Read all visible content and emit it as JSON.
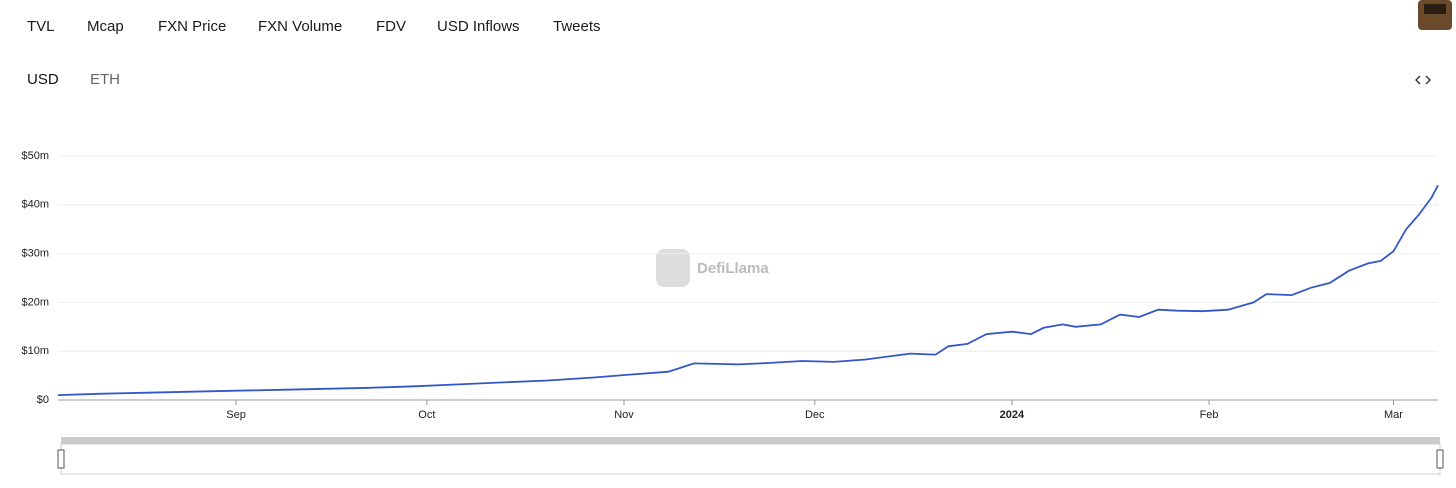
{
  "tabs": [
    "TVL",
    "Mcap",
    "FXN Price",
    "FXN Volume",
    "FDV",
    "USD Inflows",
    "Tweets"
  ],
  "currencies": [
    "USD",
    "ETH"
  ],
  "watermark": "DefiLlama",
  "chart_data": {
    "type": "line",
    "color": "#3457c8",
    "grid": true,
    "x": [
      0,
      7,
      14,
      21,
      28,
      35,
      42,
      49,
      56,
      63,
      70,
      77,
      84,
      91,
      96,
      100,
      107,
      112,
      117,
      122,
      127,
      131,
      134,
      138,
      140,
      143,
      146,
      150,
      153,
      155,
      158,
      160,
      164,
      167,
      170,
      173,
      176,
      180,
      184,
      188,
      190,
      194,
      197,
      200,
      203,
      206,
      208,
      210,
      212,
      213,
      214,
      216,
      217
    ],
    "values": [
      1.0,
      1.3,
      1.5,
      1.7,
      1.9,
      2.1,
      2.3,
      2.5,
      2.8,
      3.2,
      3.6,
      4.0,
      4.6,
      5.3,
      5.8,
      7.5,
      7.3,
      7.6,
      8.0,
      7.8,
      8.3,
      9.0,
      9.5,
      9.3,
      11,
      11.5,
      13.5,
      14.0,
      13.5,
      14.8,
      15.5,
      15.0,
      15.5,
      17.5,
      17.0,
      18.5,
      18.3,
      18.2,
      18.5,
      20.0,
      21.7,
      21.5,
      23,
      24,
      26.5,
      28,
      28.5,
      30.5,
      35,
      36.5,
      38,
      41.5,
      44
    ],
    "xlim": [
      0,
      217
    ],
    "xticks": [
      {
        "value": 28,
        "label": "Sep"
      },
      {
        "value": 58,
        "label": "Oct"
      },
      {
        "value": 89,
        "label": "Nov"
      },
      {
        "value": 119,
        "label": "Dec"
      },
      {
        "value": 150,
        "label": "2024"
      },
      {
        "value": 181,
        "label": "Feb"
      },
      {
        "value": 210,
        "label": "Mar"
      }
    ],
    "ylim": [
      0,
      50
    ],
    "yticks": [
      {
        "value": 0,
        "label": "$0"
      },
      {
        "value": 10,
        "label": "$10m"
      },
      {
        "value": 20,
        "label": "$20m"
      },
      {
        "value": 30,
        "label": "$30m"
      },
      {
        "value": 40,
        "label": "$40m"
      },
      {
        "value": 50,
        "label": "$50m"
      }
    ]
  }
}
